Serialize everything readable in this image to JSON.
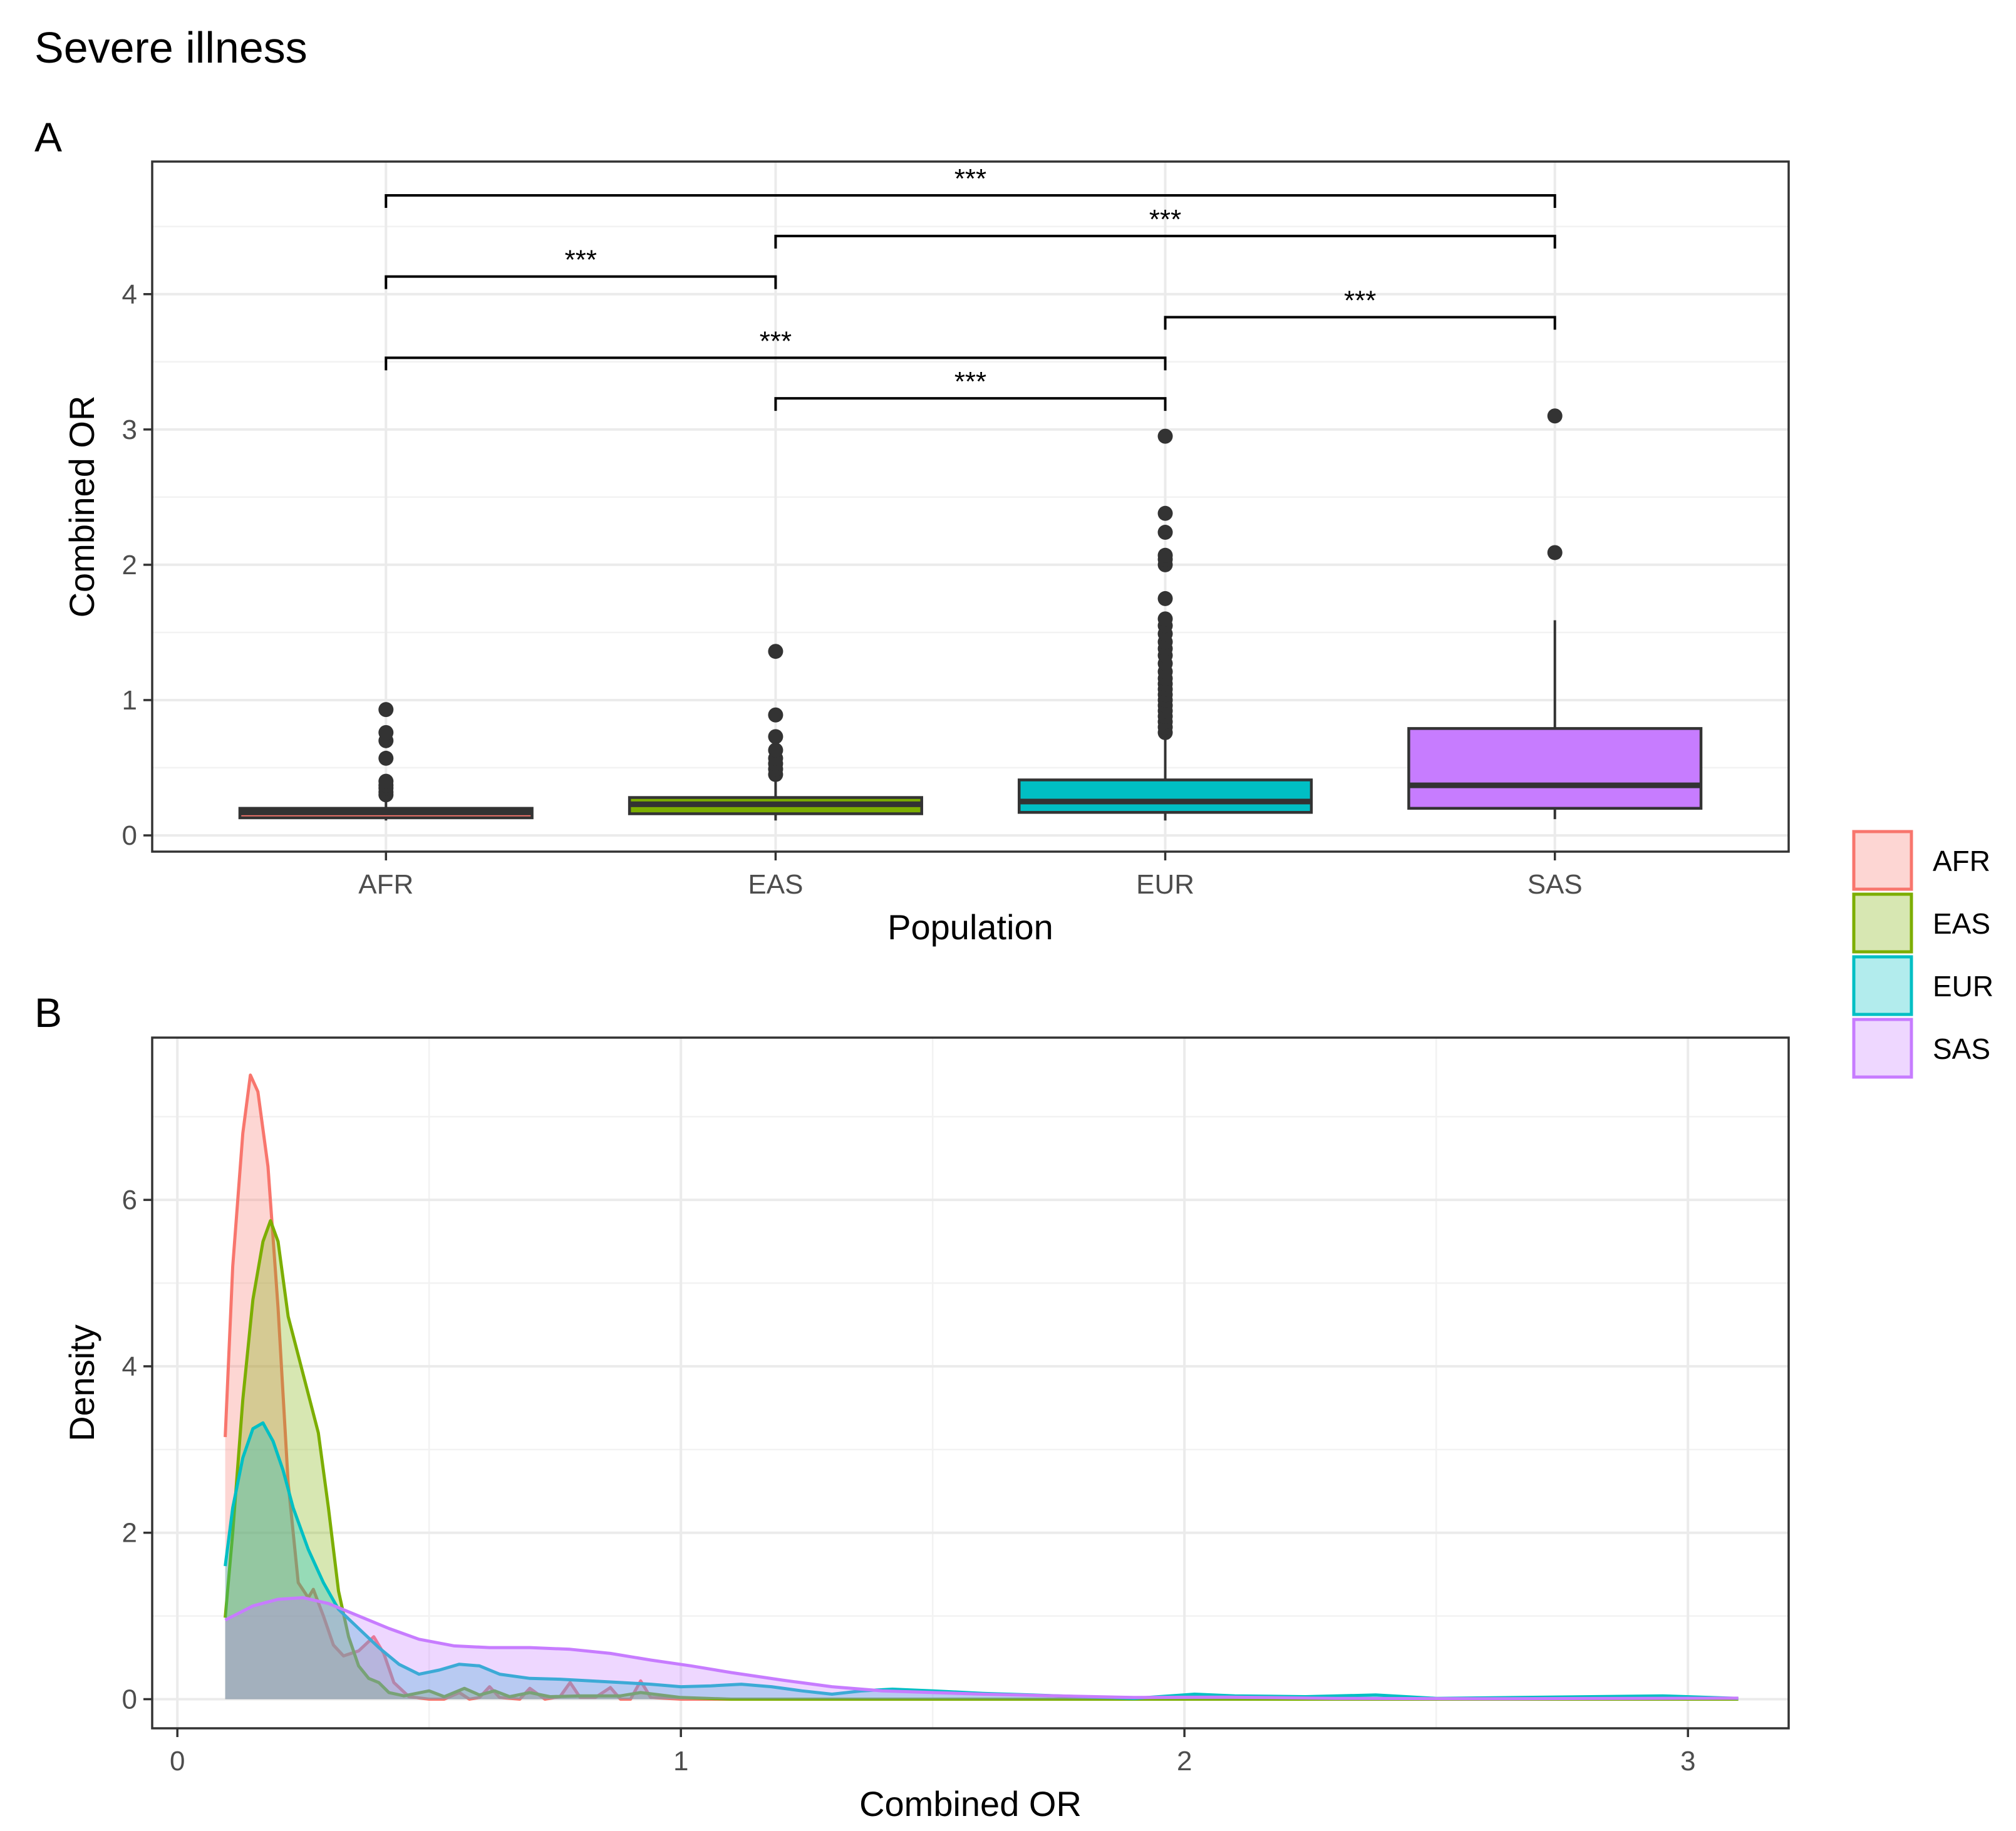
{
  "figure": {
    "title": "Severe illness"
  },
  "colors": {
    "AFR": "#F8766D",
    "EAS": "#7CAE00",
    "EUR": "#00BFC4",
    "SAS": "#C77CFF"
  },
  "legend": {
    "entries": [
      "AFR",
      "EAS",
      "EUR",
      "SAS"
    ]
  },
  "chart_data": [
    {
      "panel": "A",
      "type": "box",
      "xlabel": "Population",
      "ylabel": "Combined OR",
      "categories": [
        "AFR",
        "EAS",
        "EUR",
        "SAS"
      ],
      "ylim": [
        -0.12,
        4.98
      ],
      "yticks": [
        0,
        1,
        2,
        3,
        4
      ],
      "grid": true,
      "boxes": [
        {
          "name": "AFR",
          "whisker_low": 0.11,
          "q1": 0.13,
          "median": 0.17,
          "q3": 0.2,
          "whisker_high": 0.27,
          "outliers": [
            0.3,
            0.32,
            0.35,
            0.37,
            0.4,
            0.57,
            0.7,
            0.76,
            0.93
          ]
        },
        {
          "name": "EAS",
          "whisker_low": 0.11,
          "q1": 0.16,
          "median": 0.23,
          "q3": 0.28,
          "whisker_high": 0.4,
          "outliers": [
            0.45,
            0.49,
            0.53,
            0.57,
            0.63,
            0.73,
            0.89,
            1.36
          ]
        },
        {
          "name": "EUR",
          "whisker_low": 0.11,
          "q1": 0.17,
          "median": 0.25,
          "q3": 0.41,
          "whisker_high": 0.74,
          "outliers": [
            0.76,
            0.8,
            0.84,
            0.88,
            0.92,
            0.96,
            1.0,
            1.04,
            1.08,
            1.12,
            1.16,
            1.21,
            1.27,
            1.33,
            1.38,
            1.43,
            1.49,
            1.55,
            1.6,
            1.75,
            2.0,
            2.04,
            2.07,
            2.24,
            2.38,
            2.95
          ]
        },
        {
          "name": "SAS",
          "whisker_low": 0.12,
          "q1": 0.2,
          "median": 0.37,
          "q3": 0.79,
          "whisker_high": 1.59,
          "outliers": [
            2.09,
            3.1
          ]
        }
      ],
      "comparisons": [
        {
          "from": "AFR",
          "to": "SAS",
          "y": 4.73,
          "label": "***"
        },
        {
          "from": "EAS",
          "to": "SAS",
          "y": 4.43,
          "label": "***"
        },
        {
          "from": "AFR",
          "to": "EAS",
          "y": 4.13,
          "label": "***"
        },
        {
          "from": "EUR",
          "to": "SAS",
          "y": 3.83,
          "label": "***"
        },
        {
          "from": "AFR",
          "to": "EUR",
          "y": 3.53,
          "label": "***"
        },
        {
          "from": "EAS",
          "to": "EUR",
          "y": 3.23,
          "label": "***"
        }
      ]
    },
    {
      "panel": "B",
      "type": "area",
      "xlabel": "Combined OR",
      "ylabel": "Density",
      "xlim": [
        -0.05,
        3.2
      ],
      "ylim": [
        -0.35,
        7.95
      ],
      "xticks": [
        0,
        1,
        2,
        3
      ],
      "yticks": [
        0,
        2,
        4,
        6
      ],
      "grid": true,
      "series": [
        {
          "name": "AFR",
          "points": [
            [
              0.095,
              3.15
            ],
            [
              0.11,
              5.2
            ],
            [
              0.13,
              6.8
            ],
            [
              0.145,
              7.5
            ],
            [
              0.16,
              7.3
            ],
            [
              0.18,
              6.4
            ],
            [
              0.2,
              4.7
            ],
            [
              0.22,
              2.6
            ],
            [
              0.24,
              1.4
            ],
            [
              0.26,
              1.22
            ],
            [
              0.27,
              1.32
            ],
            [
              0.29,
              1.0
            ],
            [
              0.31,
              0.65
            ],
            [
              0.33,
              0.52
            ],
            [
              0.36,
              0.58
            ],
            [
              0.39,
              0.75
            ],
            [
              0.41,
              0.55
            ],
            [
              0.43,
              0.2
            ],
            [
              0.46,
              0.03
            ],
            [
              0.5,
              0.0
            ],
            [
              0.53,
              0.0
            ],
            [
              0.56,
              0.08
            ],
            [
              0.58,
              0.0
            ],
            [
              0.6,
              0.02
            ],
            [
              0.62,
              0.15
            ],
            [
              0.64,
              0.02
            ],
            [
              0.68,
              0.0
            ],
            [
              0.7,
              0.13
            ],
            [
              0.73,
              0.0
            ],
            [
              0.76,
              0.03
            ],
            [
              0.78,
              0.2
            ],
            [
              0.8,
              0.02
            ],
            [
              0.83,
              0.02
            ],
            [
              0.86,
              0.14
            ],
            [
              0.88,
              0.0
            ],
            [
              0.9,
              0.0
            ],
            [
              0.92,
              0.22
            ],
            [
              0.94,
              0.02
            ],
            [
              1.0,
              0.0
            ],
            [
              1.5,
              0.0
            ],
            [
              2.0,
              0.0
            ],
            [
              2.5,
              0.0
            ],
            [
              3.1,
              0.0
            ]
          ]
        },
        {
          "name": "EAS",
          "points": [
            [
              0.095,
              0.98
            ],
            [
              0.11,
              2.0
            ],
            [
              0.13,
              3.6
            ],
            [
              0.15,
              4.8
            ],
            [
              0.17,
              5.5
            ],
            [
              0.185,
              5.75
            ],
            [
              0.2,
              5.5
            ],
            [
              0.22,
              4.6
            ],
            [
              0.25,
              3.9
            ],
            [
              0.28,
              3.2
            ],
            [
              0.3,
              2.3
            ],
            [
              0.32,
              1.3
            ],
            [
              0.34,
              0.75
            ],
            [
              0.36,
              0.4
            ],
            [
              0.38,
              0.25
            ],
            [
              0.4,
              0.2
            ],
            [
              0.42,
              0.08
            ],
            [
              0.45,
              0.04
            ],
            [
              0.5,
              0.1
            ],
            [
              0.53,
              0.03
            ],
            [
              0.57,
              0.13
            ],
            [
              0.6,
              0.05
            ],
            [
              0.63,
              0.1
            ],
            [
              0.66,
              0.03
            ],
            [
              0.7,
              0.08
            ],
            [
              0.74,
              0.03
            ],
            [
              0.8,
              0.04
            ],
            [
              0.88,
              0.04
            ],
            [
              0.92,
              0.08
            ],
            [
              1.0,
              0.02
            ],
            [
              1.1,
              0.0
            ],
            [
              1.36,
              0.0
            ],
            [
              1.6,
              0.0
            ],
            [
              2.0,
              0.0
            ],
            [
              2.5,
              0.0
            ],
            [
              3.1,
              0.0
            ]
          ]
        },
        {
          "name": "EUR",
          "points": [
            [
              0.095,
              1.6
            ],
            [
              0.11,
              2.3
            ],
            [
              0.13,
              2.9
            ],
            [
              0.15,
              3.25
            ],
            [
              0.17,
              3.32
            ],
            [
              0.19,
              3.1
            ],
            [
              0.21,
              2.75
            ],
            [
              0.23,
              2.3
            ],
            [
              0.26,
              1.8
            ],
            [
              0.29,
              1.4
            ],
            [
              0.32,
              1.08
            ],
            [
              0.36,
              0.85
            ],
            [
              0.4,
              0.62
            ],
            [
              0.44,
              0.42
            ],
            [
              0.48,
              0.3
            ],
            [
              0.52,
              0.35
            ],
            [
              0.56,
              0.42
            ],
            [
              0.6,
              0.4
            ],
            [
              0.64,
              0.3
            ],
            [
              0.7,
              0.25
            ],
            [
              0.76,
              0.24
            ],
            [
              0.82,
              0.22
            ],
            [
              0.88,
              0.2
            ],
            [
              0.94,
              0.18
            ],
            [
              1.0,
              0.15
            ],
            [
              1.06,
              0.16
            ],
            [
              1.12,
              0.18
            ],
            [
              1.18,
              0.15
            ],
            [
              1.24,
              0.1
            ],
            [
              1.3,
              0.06
            ],
            [
              1.36,
              0.1
            ],
            [
              1.42,
              0.12
            ],
            [
              1.5,
              0.1
            ],
            [
              1.6,
              0.07
            ],
            [
              1.75,
              0.04
            ],
            [
              1.9,
              0.01
            ],
            [
              2.02,
              0.06
            ],
            [
              2.1,
              0.04
            ],
            [
              2.24,
              0.03
            ],
            [
              2.38,
              0.05
            ],
            [
              2.5,
              0.01
            ],
            [
              2.95,
              0.04
            ],
            [
              3.1,
              0.01
            ]
          ]
        },
        {
          "name": "SAS",
          "points": [
            [
              0.095,
              0.95
            ],
            [
              0.15,
              1.12
            ],
            [
              0.2,
              1.2
            ],
            [
              0.25,
              1.22
            ],
            [
              0.3,
              1.15
            ],
            [
              0.36,
              1.0
            ],
            [
              0.42,
              0.85
            ],
            [
              0.48,
              0.72
            ],
            [
              0.55,
              0.64
            ],
            [
              0.62,
              0.62
            ],
            [
              0.7,
              0.62
            ],
            [
              0.78,
              0.6
            ],
            [
              0.86,
              0.55
            ],
            [
              0.94,
              0.47
            ],
            [
              1.02,
              0.4
            ],
            [
              1.1,
              0.32
            ],
            [
              1.2,
              0.23
            ],
            [
              1.3,
              0.15
            ],
            [
              1.4,
              0.1
            ],
            [
              1.5,
              0.08
            ],
            [
              1.6,
              0.06
            ],
            [
              1.75,
              0.04
            ],
            [
              1.9,
              0.02
            ],
            [
              2.09,
              0.025
            ],
            [
              2.3,
              0.01
            ],
            [
              2.6,
              0.005
            ],
            [
              2.9,
              0.01
            ],
            [
              3.1,
              0.012
            ]
          ]
        }
      ]
    }
  ]
}
